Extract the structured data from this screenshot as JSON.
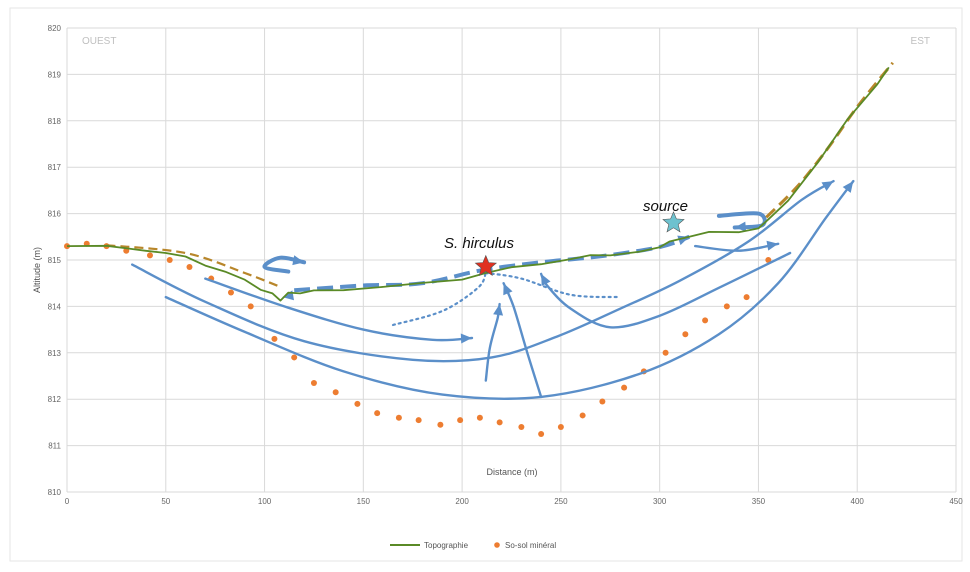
{
  "chart_data": {
    "type": "line",
    "xlabel": "Distance (m)",
    "ylabel": "Altitude (m)",
    "xlim": [
      0,
      450
    ],
    "ylim": [
      810,
      820
    ],
    "x_ticks": [
      "0",
      "50",
      "100",
      "150",
      "200",
      "250",
      "300",
      "350",
      "400",
      "450"
    ],
    "y_ticks": [
      "810",
      "811",
      "812",
      "813",
      "814",
      "815",
      "816",
      "817",
      "818",
      "819",
      "820"
    ],
    "grid": true,
    "legend_position": "bottom",
    "direction_labels": {
      "west": "OUEST",
      "east": "EST"
    },
    "annotations": {
      "species": "S. hirculus",
      "spring": "source"
    },
    "colors": {
      "topography": "#5a8a26",
      "subsoil": "#ed7d31",
      "flow": "#5b8fc9",
      "dashed_surface": "#b8862a",
      "species_star": "#e03020",
      "source_star": "#6ec2cf"
    },
    "series": [
      {
        "name": "Topographie",
        "style": "line",
        "x": [
          0,
          20,
          40,
          50,
          60,
          70,
          80,
          90,
          98,
          104,
          108,
          112,
          118,
          125,
          140,
          160,
          180,
          200,
          212,
          225,
          240,
          255,
          265,
          275,
          290,
          300,
          305,
          315,
          325,
          340,
          350,
          355,
          365,
          380,
          395,
          410,
          416
        ],
        "y": [
          815.3,
          815.28,
          815.22,
          815.15,
          815.05,
          814.9,
          814.75,
          814.55,
          814.38,
          814.28,
          814.1,
          814.32,
          814.28,
          814.32,
          814.37,
          814.42,
          814.48,
          814.6,
          814.72,
          814.82,
          814.93,
          815.02,
          815.08,
          815.12,
          815.18,
          815.25,
          815.42,
          815.5,
          815.58,
          815.62,
          815.68,
          815.85,
          816.3,
          817.1,
          818.0,
          818.8,
          819.15
        ]
      },
      {
        "name": "So-sol minéral",
        "style": "dots",
        "x": [
          0,
          10,
          20,
          30,
          42,
          52,
          62,
          73,
          83,
          93,
          105,
          115,
          125,
          136,
          147,
          157,
          168,
          178,
          189,
          199,
          209,
          219,
          230,
          240,
          250,
          261,
          271,
          282,
          292,
          303,
          313,
          323,
          334,
          344,
          355
        ],
        "y": [
          815.3,
          815.35,
          815.3,
          815.2,
          815.1,
          815.0,
          814.85,
          814.6,
          814.3,
          814.0,
          813.3,
          812.9,
          812.35,
          812.15,
          811.9,
          811.7,
          811.6,
          811.55,
          811.45,
          811.55,
          811.6,
          811.5,
          811.4,
          811.25,
          811.4,
          811.65,
          811.95,
          812.25,
          812.6,
          813.0,
          813.4,
          813.7,
          814.0,
          814.2,
          815.0
        ]
      }
    ]
  },
  "overlays": {
    "dashed_surface_left": [
      [
        20,
        815.32
      ],
      [
        60,
        815.15
      ],
      [
        90,
        814.72
      ],
      [
        108,
        814.42
      ]
    ],
    "dashed_surface_right": [
      [
        354,
        815.92
      ],
      [
        370,
        816.6
      ],
      [
        385,
        817.4
      ],
      [
        400,
        818.3
      ],
      [
        418,
        819.25
      ]
    ],
    "blue_dashed": [
      [
        115,
        814.35
      ],
      [
        150,
        814.45
      ],
      [
        180,
        814.5
      ],
      [
        210,
        814.78
      ],
      [
        240,
        814.95
      ],
      [
        270,
        815.08
      ],
      [
        300,
        815.28
      ],
      [
        315,
        815.5
      ]
    ],
    "blue_dotted_left": [
      [
        165,
        813.6
      ],
      [
        190,
        813.9
      ],
      [
        208,
        814.4
      ],
      [
        212,
        814.72
      ]
    ],
    "blue_dotted_right": [
      [
        212,
        814.72
      ],
      [
        230,
        814.6
      ],
      [
        255,
        814.25
      ],
      [
        280,
        814.2
      ]
    ],
    "flows": [
      [
        [
          33,
          814.9
        ],
        [
          70,
          814.1
        ],
        [
          120,
          813.25
        ],
        [
          175,
          812.85
        ],
        [
          215,
          812.9
        ],
        [
          248,
          813.35
        ],
        [
          280,
          813.95
        ],
        [
          310,
          814.55
        ],
        [
          345,
          815.4
        ],
        [
          372,
          816.3
        ],
        [
          388,
          816.7
        ]
      ],
      [
        [
          50,
          814.2
        ],
        [
          90,
          813.45
        ],
        [
          140,
          812.6
        ],
        [
          190,
          812.1
        ],
        [
          240,
          812.05
        ],
        [
          290,
          812.55
        ],
        [
          330,
          813.4
        ],
        [
          360,
          814.5
        ],
        [
          384,
          815.9
        ],
        [
          398,
          816.7
        ]
      ],
      [
        [
          70,
          814.6
        ],
        [
          110,
          814.0
        ],
        [
          150,
          813.5
        ],
        [
          185,
          813.28
        ],
        [
          205,
          813.32
        ]
      ],
      [
        [
          212,
          812.4
        ],
        [
          214,
          813.1
        ],
        [
          218,
          813.75
        ],
        [
          219,
          814.05
        ]
      ],
      [
        [
          240,
          812.05
        ],
        [
          233,
          813.0
        ],
        [
          226,
          814.0
        ],
        [
          221,
          814.5
        ]
      ],
      [
        [
          366,
          815.15
        ],
        [
          330,
          814.4
        ],
        [
          300,
          813.8
        ],
        [
          275,
          813.55
        ],
        [
          255,
          813.95
        ],
        [
          243,
          814.45
        ],
        [
          240,
          814.7
        ]
      ],
      [
        [
          318,
          815.3
        ],
        [
          340,
          815.2
        ],
        [
          360,
          815.35
        ]
      ]
    ],
    "curl_arrows": [
      [
        [
          112,
          814.75
        ],
        [
          100,
          814.85
        ],
        [
          108,
          815.05
        ],
        [
          120,
          814.95
        ]
      ],
      [
        [
          330,
          815.95
        ],
        [
          350,
          816.0
        ],
        [
          352,
          815.75
        ],
        [
          338,
          815.7
        ]
      ]
    ],
    "stars": [
      [
        212,
        814.86
      ],
      [
        307,
        815.8
      ]
    ]
  }
}
